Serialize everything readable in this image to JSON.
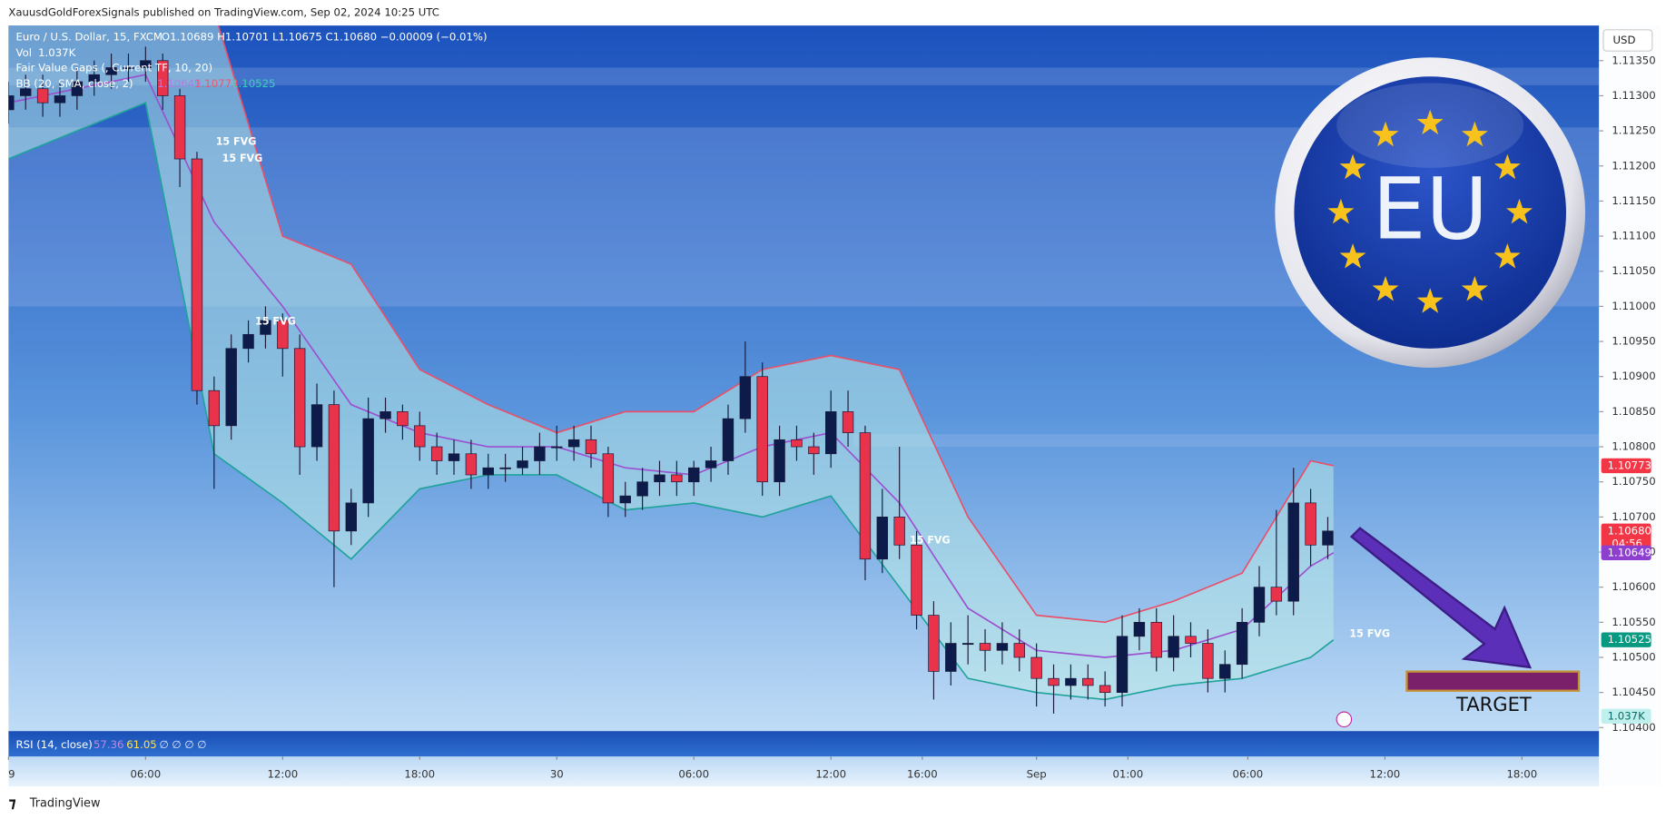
{
  "header": {
    "published": "XauusdGoldForexSignals published on TradingView.com, Sep 02, 2024 10:25 UTC",
    "symbol": "Euro / U.S. Dollar, 15, FXCM",
    "ohlc": "O1.10689 H1.10701 L1.10675 C1.10680 −0.00009 (−0.01%)",
    "vol_label": "Vol",
    "vol_value": "1.037K",
    "fvg_indicator": "Fair Value Gaps (, Current TF, 10, 20)",
    "bb_indicator": "BB (20, SMA, close, 2)",
    "bb_values": [
      "1.10649",
      "1.10773",
      "1.10525"
    ],
    "currency": "USD",
    "rsi_label": "RSI (14, close)",
    "rsi_values": [
      "57.36",
      "61.05",
      "∅ ∅ ∅ ∅"
    ],
    "footer": "TradingView"
  },
  "chart_data": {
    "type": "candlestick",
    "up_color": "#0d1b4a",
    "down_color": "#e8334a",
    "x": [
      0,
      3,
      6,
      9,
      12,
      15,
      18,
      21,
      24,
      27,
      30,
      33,
      36,
      39,
      42,
      45,
      48,
      51,
      54,
      57,
      60,
      63,
      66,
      69,
      72,
      75,
      78,
      81,
      84,
      87,
      90,
      93,
      96,
      99,
      102,
      105,
      108,
      111,
      114,
      117,
      120,
      123,
      126,
      129,
      132,
      135,
      138,
      141,
      144,
      147,
      150,
      153,
      156,
      159,
      162,
      165,
      168,
      171,
      174,
      177,
      180,
      183,
      186,
      189,
      192,
      195,
      198,
      201,
      204,
      207,
      210,
      213,
      216,
      219,
      222,
      225,
      228,
      231
    ],
    "open": [
      1.1128,
      1.113,
      1.1131,
      1.1129,
      1.113,
      1.1132,
      1.1133,
      1.1134,
      1.1134,
      1.1135,
      1.113,
      1.1121,
      1.1088,
      1.1083,
      1.1094,
      1.1096,
      1.1098,
      1.1094,
      1.108,
      1.1086,
      1.1068,
      1.1072,
      1.1084,
      1.1085,
      1.1083,
      1.108,
      1.1078,
      1.1079,
      1.1076,
      1.1077,
      1.1077,
      1.1078,
      1.108,
      1.108,
      1.1081,
      1.1079,
      1.1072,
      1.1073,
      1.1075,
      1.1076,
      1.1075,
      1.1077,
      1.1078,
      1.1084,
      1.109,
      1.1075,
      1.1081,
      1.108,
      1.1079,
      1.1085,
      1.1082,
      1.1064,
      1.107,
      1.1066,
      1.1056,
      1.1048,
      1.1052,
      1.1052,
      1.1051,
      1.1052,
      1.105,
      1.1047,
      1.1046,
      1.1047,
      1.1046,
      1.1045,
      1.1053,
      1.1055,
      1.105,
      1.1053,
      1.1052,
      1.1047,
      1.1049,
      1.1055,
      1.106,
      1.1058,
      1.1072,
      1.1066
    ],
    "high": [
      1.1132,
      1.1133,
      1.1133,
      1.1132,
      1.1134,
      1.1135,
      1.1136,
      1.1136,
      1.1137,
      1.1136,
      1.1131,
      1.1122,
      1.109,
      1.1096,
      1.1098,
      1.11,
      1.1099,
      1.1096,
      1.1089,
      1.1088,
      1.1074,
      1.1087,
      1.1087,
      1.1086,
      1.1085,
      1.1082,
      1.1081,
      1.1081,
      1.1079,
      1.1079,
      1.108,
      1.1082,
      1.1083,
      1.1083,
      1.1083,
      1.108,
      1.1075,
      1.1077,
      1.1078,
      1.1078,
      1.1078,
      1.108,
      1.1086,
      1.1095,
      1.1092,
      1.1083,
      1.1083,
      1.1082,
      1.1088,
      1.1088,
      1.1083,
      1.1074,
      1.108,
      1.1068,
      1.1058,
      1.1055,
      1.1056,
      1.1054,
      1.1055,
      1.1054,
      1.1052,
      1.1049,
      1.1049,
      1.1049,
      1.1048,
      1.1056,
      1.1057,
      1.1057,
      1.1056,
      1.1055,
      1.1054,
      1.1051,
      1.1057,
      1.1063,
      1.1071,
      1.1077,
      1.1074,
      1.107
    ],
    "low": [
      1.1126,
      1.1128,
      1.1127,
      1.1127,
      1.1128,
      1.113,
      1.1131,
      1.1132,
      1.1132,
      1.1128,
      1.1117,
      1.1086,
      1.1074,
      1.1081,
      1.1092,
      1.1094,
      1.109,
      1.1076,
      1.1078,
      1.106,
      1.1066,
      1.107,
      1.1082,
      1.1081,
      1.1078,
      1.1076,
      1.1076,
      1.1074,
      1.1074,
      1.1075,
      1.1076,
      1.1076,
      1.1078,
      1.1078,
      1.1077,
      1.107,
      1.107,
      1.1071,
      1.1073,
      1.1073,
      1.1073,
      1.1075,
      1.1076,
      1.1082,
      1.1073,
      1.1073,
      1.1078,
      1.1076,
      1.1077,
      1.108,
      1.1061,
      1.1062,
      1.1064,
      1.1054,
      1.1044,
      1.1046,
      1.1049,
      1.1048,
      1.1049,
      1.1048,
      1.1043,
      1.1042,
      1.1044,
      1.1044,
      1.1043,
      1.1043,
      1.1051,
      1.1048,
      1.1048,
      1.105,
      1.1045,
      1.1045,
      1.1047,
      1.1053,
      1.1056,
      1.1056,
      1.1063,
      1.1064
    ],
    "close": [
      1.113,
      1.1131,
      1.1129,
      1.113,
      1.1132,
      1.1133,
      1.1134,
      1.1134,
      1.1135,
      1.113,
      1.1121,
      1.1088,
      1.1083,
      1.1094,
      1.1096,
      1.1098,
      1.1094,
      1.108,
      1.1086,
      1.1068,
      1.1072,
      1.1084,
      1.1085,
      1.1083,
      1.108,
      1.1078,
      1.1079,
      1.1076,
      1.1077,
      1.1077,
      1.1078,
      1.108,
      1.108,
      1.1081,
      1.1079,
      1.1072,
      1.1073,
      1.1075,
      1.1076,
      1.1075,
      1.1077,
      1.1078,
      1.1084,
      1.109,
      1.1075,
      1.1081,
      1.108,
      1.1079,
      1.1085,
      1.1082,
      1.1064,
      1.107,
      1.1066,
      1.1056,
      1.1048,
      1.1052,
      1.1052,
      1.1051,
      1.1052,
      1.105,
      1.1047,
      1.1046,
      1.1047,
      1.1046,
      1.1045,
      1.1053,
      1.1055,
      1.105,
      1.1053,
      1.1052,
      1.1047,
      1.1049,
      1.1055,
      1.106,
      1.1058,
      1.1072,
      1.1066,
      1.1068
    ],
    "bands": {
      "x": [
        0,
        12,
        24,
        36,
        48,
        60,
        72,
        84,
        96,
        108,
        120,
        132,
        144,
        156,
        168,
        180,
        192,
        204,
        216,
        228,
        232
      ],
      "upper": [
        1.1141,
        1.1142,
        1.1143,
        1.1142,
        1.111,
        1.1106,
        1.1091,
        1.1086,
        1.1082,
        1.1085,
        1.1085,
        1.1091,
        1.1093,
        1.1091,
        1.107,
        1.1056,
        1.1055,
        1.1058,
        1.1062,
        1.1078,
        1.10773
      ],
      "middle": [
        1.1129,
        1.1131,
        1.1133,
        1.1112,
        1.11,
        1.1086,
        1.1082,
        1.108,
        1.108,
        1.1077,
        1.1076,
        1.108,
        1.1082,
        1.1072,
        1.1057,
        1.1051,
        1.105,
        1.1051,
        1.1054,
        1.1063,
        1.10649
      ],
      "lower": [
        1.1121,
        1.1125,
        1.1129,
        1.1079,
        1.1072,
        1.1064,
        1.1074,
        1.1076,
        1.1076,
        1.1071,
        1.1072,
        1.107,
        1.1073,
        1.106,
        1.1047,
        1.1045,
        1.1044,
        1.1046,
        1.1047,
        1.105,
        1.10525
      ],
      "upper_color": "#e8506a",
      "middle_color": "#9c4fd1",
      "lower_color": "#1fa39a"
    },
    "fvg_zones": [
      {
        "x0": 0,
        "low": 1.11,
        "high": 1.11255
      },
      {
        "x0": 0,
        "low": 1.11315,
        "high": 1.1134
      },
      {
        "x0": 148,
        "low": 1.108,
        "high": 1.10818
      }
    ],
    "fvg_labels": [
      {
        "text": "15 FVG",
        "x": 36.3,
        "y": 1.11234
      },
      {
        "text": "15 FVG",
        "x": 37.4,
        "y": 1.1121
      },
      {
        "text": "15 FVG",
        "x": 43.2,
        "y": 1.10978
      },
      {
        "text": "15 FVG",
        "x": 157.8,
        "y": 1.10666
      },
      {
        "text": "15 FVG",
        "x": 234.8,
        "y": 1.10533
      }
    ],
    "price_tags": [
      {
        "value": 1.10773,
        "label": "1.10773",
        "color": "#f23645"
      },
      {
        "value": 1.1068,
        "label": "1.10680",
        "color": "#f23645"
      },
      {
        "value": 1.10649,
        "label": "1.10649",
        "color": "#8e3fd0"
      },
      {
        "value": 1.10525,
        "label": "1.10525",
        "color": "#089981"
      }
    ],
    "countdown": "04:56",
    "volume_tag": "1.037K",
    "logo": "EU",
    "target": "TARGET",
    "xlim": [
      0,
      278.5
    ],
    "ylim": [
      1.10395,
      1.114
    ],
    "xticks": [
      {
        "value": 0,
        "label": "9"
      },
      {
        "value": 24,
        "label": "06:00"
      },
      {
        "value": 48,
        "label": "12:00"
      },
      {
        "value": 72,
        "label": "18:00"
      },
      {
        "value": 96,
        "label": "30"
      },
      {
        "value": 120,
        "label": "06:00"
      },
      {
        "value": 144,
        "label": "12:00"
      },
      {
        "value": 160,
        "label": "16:00"
      },
      {
        "value": 180,
        "label": "Sep"
      },
      {
        "value": 196,
        "label": "01:00"
      },
      {
        "value": 217,
        "label": "06:00"
      },
      {
        "value": 241,
        "label": "12:00"
      },
      {
        "value": 265,
        "label": "18:00"
      }
    ],
    "yticks": [
      {
        "value": 1.104,
        "label": "1.10400"
      },
      {
        "value": 1.1045,
        "label": "1.10450"
      },
      {
        "value": 1.105,
        "label": "1.10500"
      },
      {
        "value": 1.1055,
        "label": "1.10550"
      },
      {
        "value": 1.106,
        "label": "1.10600"
      },
      {
        "value": 1.1065,
        "label": "1.10650"
      },
      {
        "value": 1.107,
        "label": "1.10700"
      },
      {
        "value": 1.1075,
        "label": "1.10750"
      },
      {
        "value": 1.108,
        "label": "1.10800"
      },
      {
        "value": 1.1085,
        "label": "1.10850"
      },
      {
        "value": 1.109,
        "label": "1.10900"
      },
      {
        "value": 1.1095,
        "label": "1.10950"
      },
      {
        "value": 1.11,
        "label": "1.11000"
      },
      {
        "value": 1.1105,
        "label": "1.11050"
      },
      {
        "value": 1.111,
        "label": "1.11100"
      },
      {
        "value": 1.1115,
        "label": "1.11150"
      },
      {
        "value": 1.112,
        "label": "1.11200"
      },
      {
        "value": 1.1125,
        "label": "1.11250"
      },
      {
        "value": 1.113,
        "label": "1.11300"
      },
      {
        "value": 1.1135,
        "label": "1.11350"
      }
    ],
    "grid": false
  }
}
